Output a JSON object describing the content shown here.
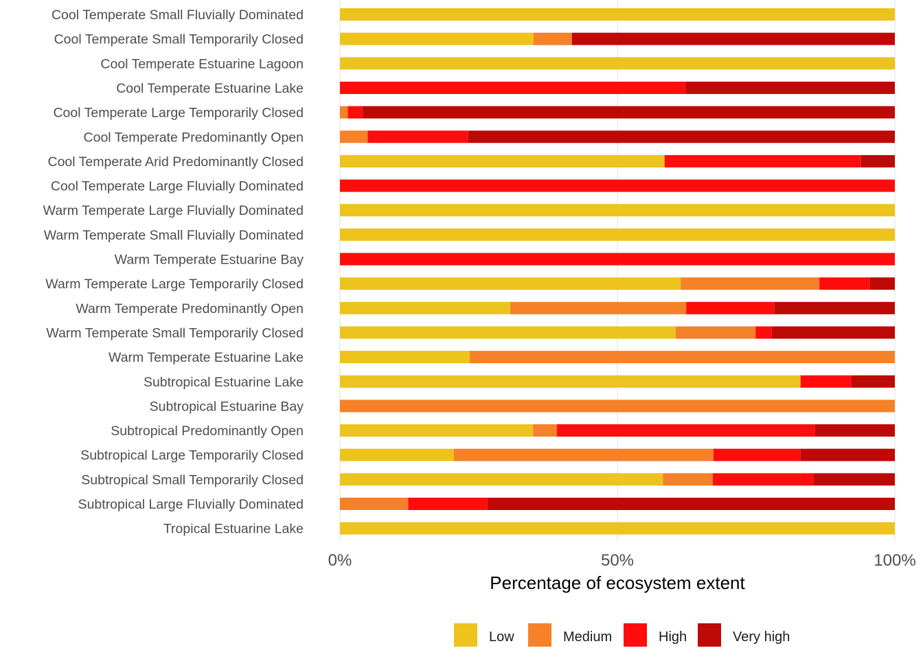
{
  "chart_data": {
    "type": "bar",
    "orientation": "horizontal",
    "stacked": true,
    "title": "",
    "xlabel": "Percentage of ecosystem extent",
    "ylabel": "",
    "xlim": [
      0,
      100
    ],
    "x_ticks": [
      "0%",
      "50%",
      "100%"
    ],
    "x_tick_values": [
      0,
      50,
      100
    ],
    "grid": true,
    "legend_position": "bottom",
    "categories": [
      "Cool Temperate Small Fluvially Dominated",
      "Cool Temperate Small Temporarily Closed",
      "Cool Temperate Estuarine Lagoon",
      "Cool Temperate Estuarine Lake",
      "Cool Temperate Large Temporarily Closed",
      "Cool Temperate Predominantly Open",
      "Cool Temperate Arid Predominantly Closed",
      "Cool Temperate Large Fluvially Dominated",
      "Warm Temperate Large Fluvially Dominated",
      "Warm Temperate Small Fluvially Dominated",
      "Warm Temperate Estuarine Bay",
      "Warm Temperate Large Temporarily Closed",
      "Warm Temperate Predominantly Open",
      "Warm Temperate Small Temporarily Closed",
      "Warm Temperate Estuarine Lake",
      "Subtropical Estuarine Lake",
      "Subtropical Estuarine Bay",
      "Subtropical Predominantly Open",
      "Subtropical Large Temporarily Closed",
      "Subtropical Small Temporarily Closed",
      "Subtropical Large Fluvially Dominated",
      "Tropical Estuarine Lake"
    ],
    "series": [
      {
        "name": "Low",
        "color": "#EDC31D",
        "values": [
          100,
          34.9,
          100,
          0,
          0,
          0,
          58.5,
          0,
          100,
          100,
          0,
          61.4,
          30.7,
          60.5,
          23.4,
          83.0,
          0,
          34.8,
          20.5,
          58.2,
          0,
          100
        ]
      },
      {
        "name": "Medium",
        "color": "#F58128",
        "values": [
          0,
          6.9,
          0,
          0,
          1.4,
          5.0,
          0,
          0,
          0,
          0,
          0,
          25.0,
          31.7,
          14.4,
          76.6,
          0,
          100,
          4.3,
          46.8,
          9.0,
          12.3,
          0
        ]
      },
      {
        "name": "High",
        "color": "#FF0D0D",
        "values": [
          0,
          0,
          0,
          62.3,
          2.7,
          18.1,
          35.4,
          100,
          0,
          0,
          100,
          9.1,
          15.9,
          2.9,
          0,
          9.2,
          0,
          46.5,
          15.7,
          18.2,
          14.3,
          0
        ]
      },
      {
        "name": "Very high",
        "color": "#BD0A07",
        "values": [
          0,
          58.2,
          0,
          37.7,
          95.9,
          76.9,
          6.1,
          0,
          0,
          0,
          0,
          4.5,
          21.7,
          22.2,
          0,
          7.8,
          0,
          14.4,
          17.0,
          14.6,
          73.4,
          0
        ]
      }
    ]
  }
}
